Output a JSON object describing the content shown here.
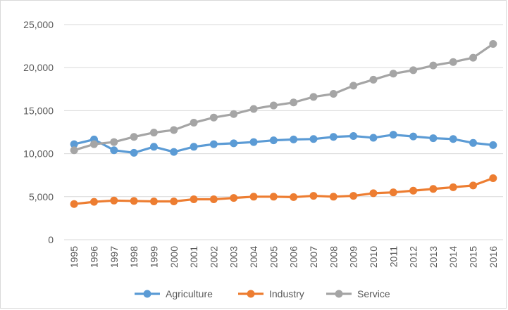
{
  "chart_data": {
    "type": "line",
    "title": "",
    "xlabel": "",
    "ylabel": "",
    "ylim": [
      0,
      25000
    ],
    "yticks": [
      0,
      5000,
      10000,
      15000,
      20000,
      25000
    ],
    "ytick_labels": [
      "0",
      "5,000",
      "10,000",
      "15,000",
      "20,000",
      "25,000"
    ],
    "grid": true,
    "legend_position": "bottom",
    "categories": [
      "1995",
      "1996",
      "1997",
      "1998",
      "1999",
      "2000",
      "2001",
      "2002",
      "2003",
      "2004",
      "2005",
      "2006",
      "2007",
      "2008",
      "2009",
      "2010",
      "2011",
      "2012",
      "2013",
      "2014",
      "2015",
      "2016"
    ],
    "series": [
      {
        "name": "Agriculture",
        "color": "#5b9bd5",
        "values": [
          11100,
          11650,
          10400,
          10100,
          10800,
          10200,
          10800,
          11100,
          11200,
          11350,
          11550,
          11650,
          11700,
          11950,
          12050,
          11850,
          12200,
          12000,
          11800,
          11700,
          11250,
          11000
        ]
      },
      {
        "name": "Industry",
        "color": "#ed7d31",
        "values": [
          4150,
          4400,
          4550,
          4500,
          4450,
          4450,
          4700,
          4700,
          4850,
          5000,
          5000,
          4950,
          5100,
          5000,
          5100,
          5400,
          5500,
          5700,
          5900,
          6100,
          6300,
          7150
        ]
      },
      {
        "name": "Service",
        "color": "#a5a5a5",
        "values": [
          10400,
          11100,
          11350,
          11950,
          12450,
          12750,
          13600,
          14200,
          14600,
          15200,
          15600,
          15950,
          16600,
          16950,
          17900,
          18600,
          19300,
          19700,
          20250,
          20650,
          21150,
          22750
        ]
      }
    ]
  }
}
